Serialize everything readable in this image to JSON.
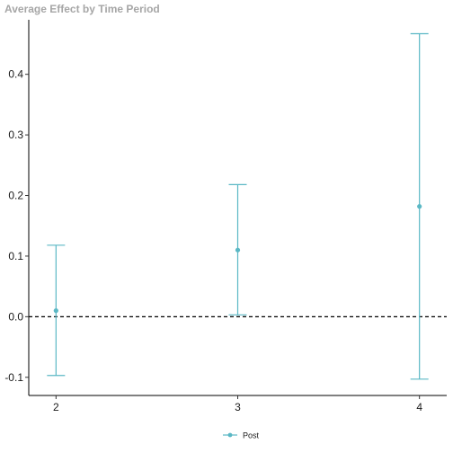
{
  "chart_data": {
    "type": "errorbar",
    "title": "Average Effect by Time Period",
    "xlabel": "",
    "ylabel": "",
    "x_categories": [
      "2",
      "3",
      "4"
    ],
    "xlim": [
      1.85,
      4.15
    ],
    "ylim": [
      -0.13,
      0.49
    ],
    "yticks": [
      -0.1,
      0.0,
      0.1,
      0.2,
      0.3,
      0.4
    ],
    "ytick_labels": [
      "-0.1",
      "0.0",
      "0.1",
      "0.2",
      "0.3",
      "0.4"
    ],
    "reference_line": {
      "y": 0,
      "style": "dashed",
      "color": "#000000"
    },
    "grid": false,
    "legend": {
      "position": "bottom",
      "entries": [
        "Post"
      ]
    },
    "series": [
      {
        "name": "Post",
        "color": "#5bb8c5",
        "points": [
          {
            "x": "2",
            "estimate": 0.01,
            "lower": -0.097,
            "upper": 0.118
          },
          {
            "x": "3",
            "estimate": 0.11,
            "lower": 0.003,
            "upper": 0.218
          },
          {
            "x": "4",
            "estimate": 0.182,
            "lower": -0.103,
            "upper": 0.467
          }
        ]
      }
    ]
  }
}
